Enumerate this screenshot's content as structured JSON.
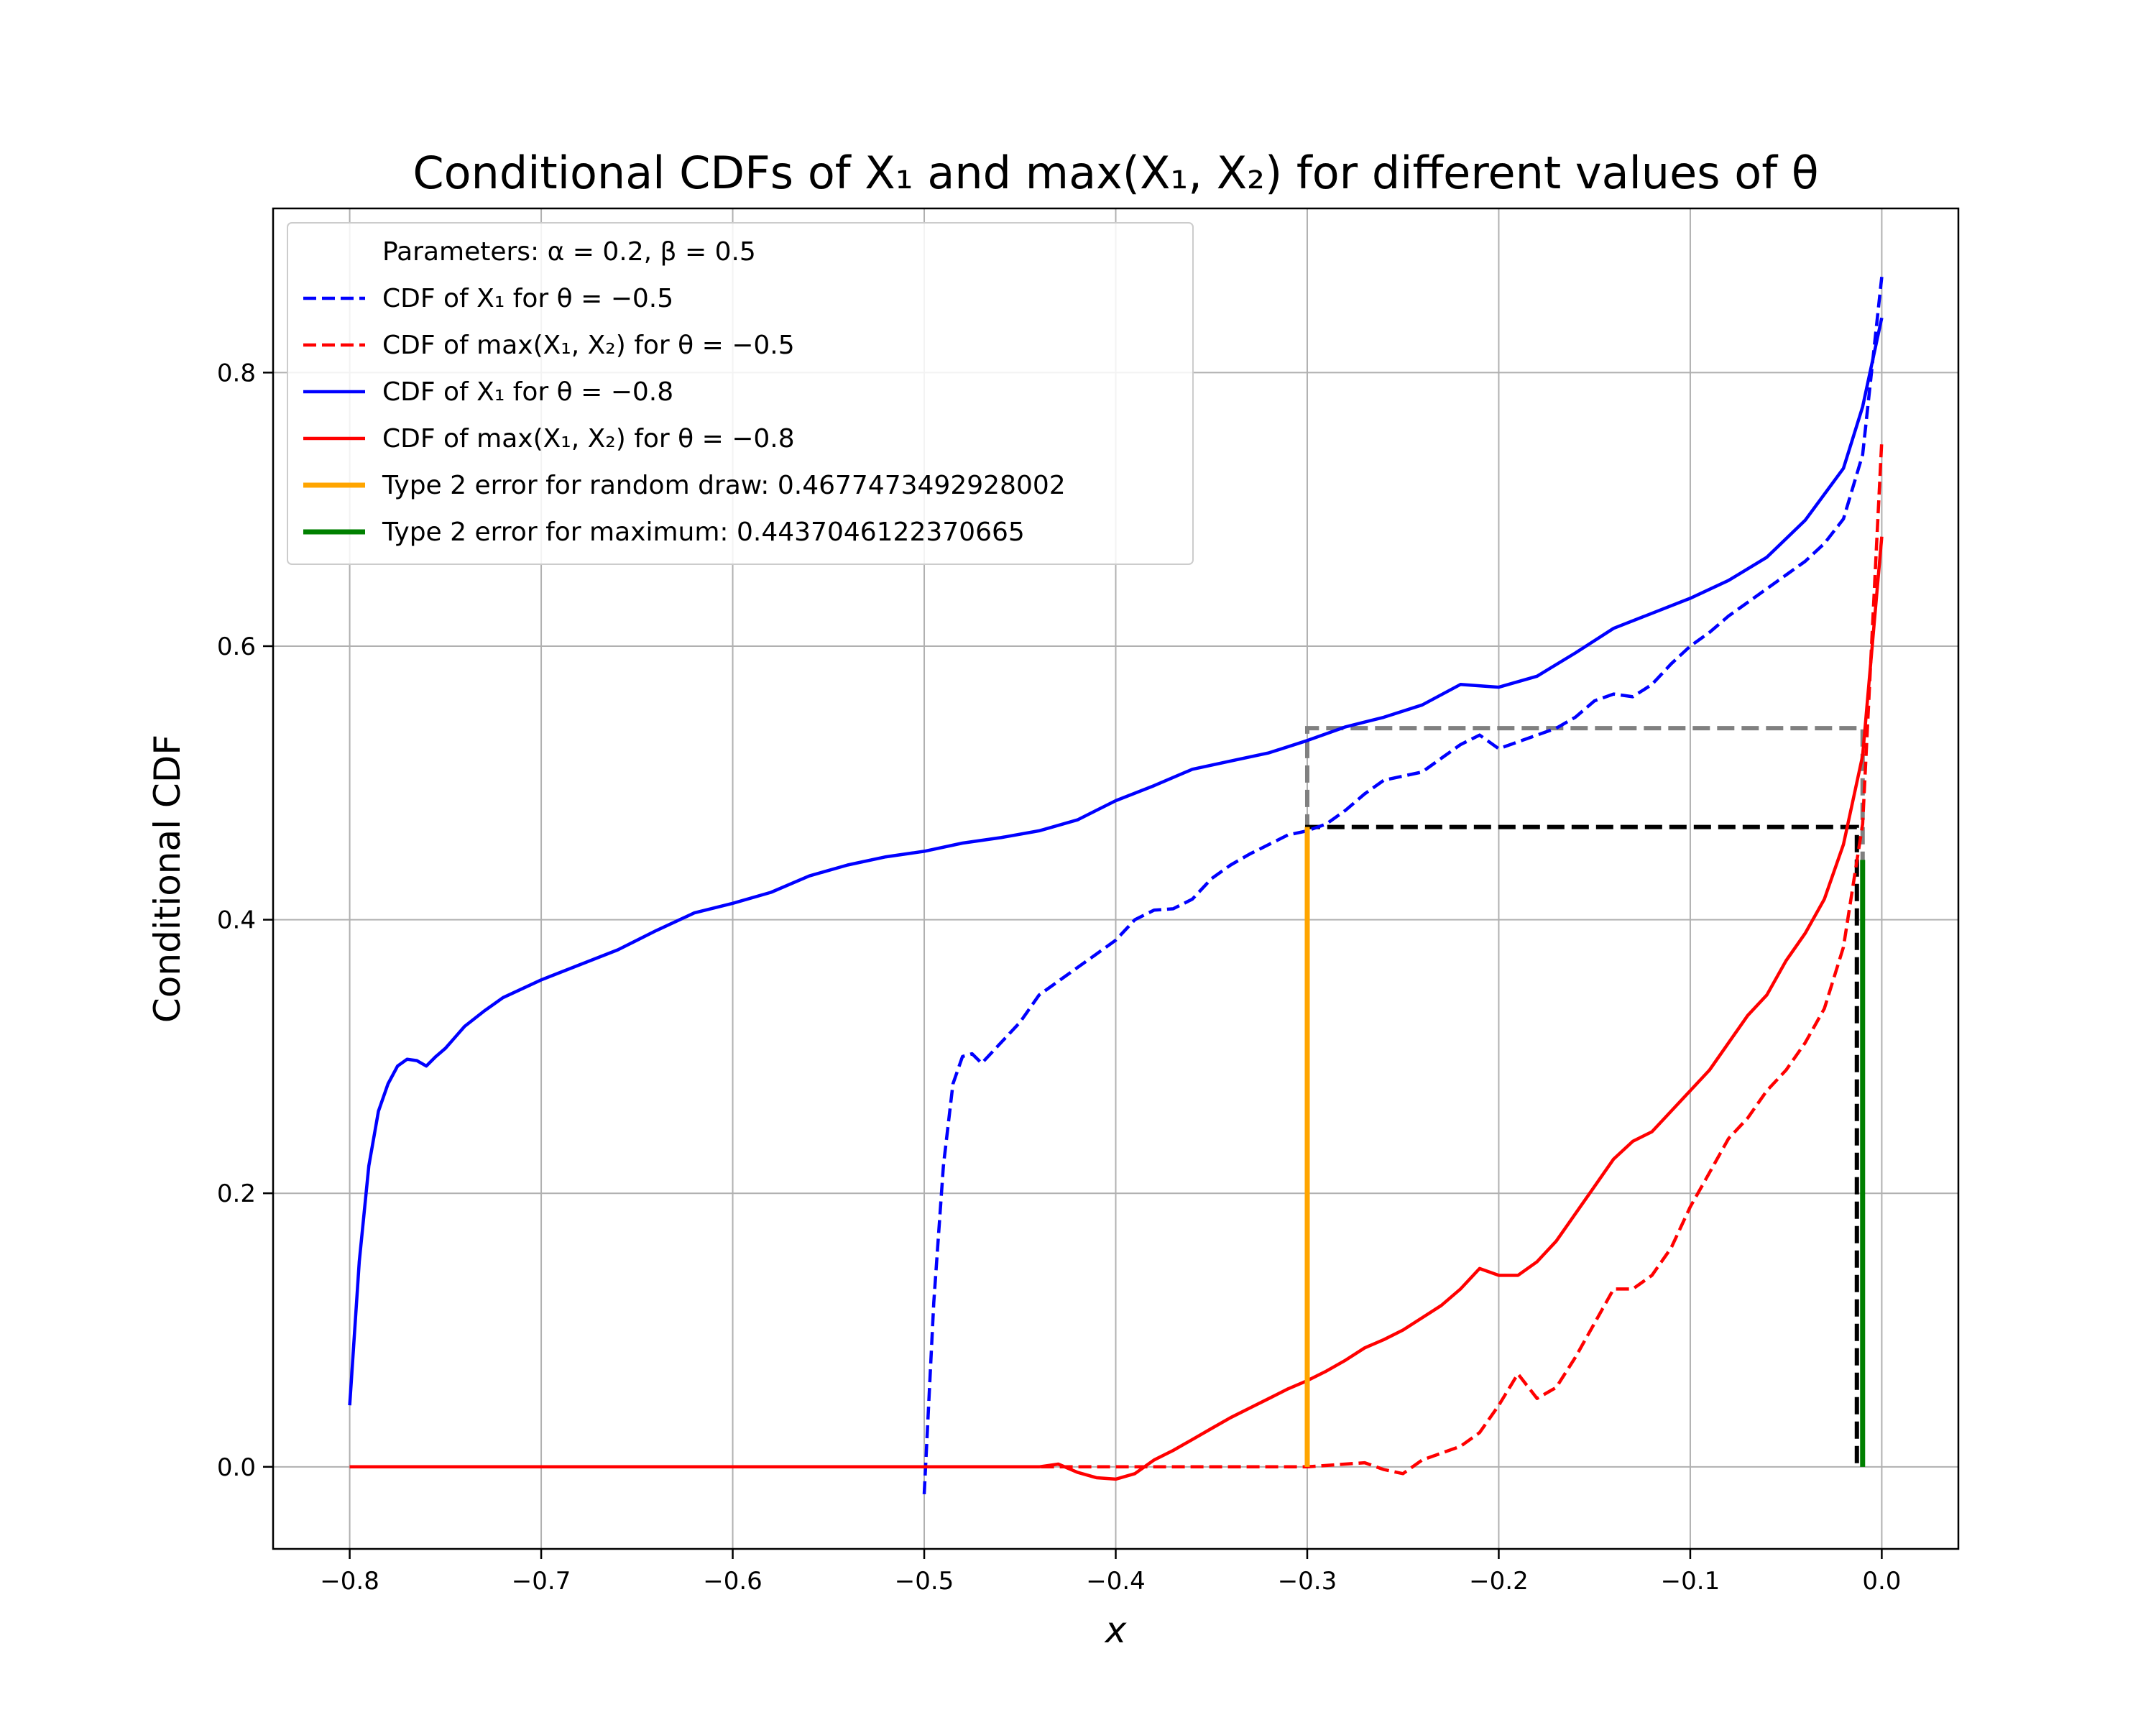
{
  "chart_data": {
    "type": "line",
    "title": "Conditional CDFs of X₁ and max(X₁, X₂) for different values of θ",
    "xlabel": "x",
    "ylabel": "Conditional CDF",
    "xlim": [
      -0.84,
      0.04
    ],
    "ylim": [
      -0.06,
      0.92
    ],
    "grid": true,
    "legend_position": "top-left",
    "xticks": [
      -0.8,
      -0.7,
      -0.6,
      -0.5,
      -0.4,
      -0.3,
      -0.2,
      -0.1,
      0.0
    ],
    "xtick_labels": [
      "−0.8",
      "−0.7",
      "−0.6",
      "−0.5",
      "−0.4",
      "−0.3",
      "−0.2",
      "−0.1",
      "0.0"
    ],
    "yticks": [
      0.0,
      0.2,
      0.4,
      0.6,
      0.8
    ],
    "ytick_labels": [
      "0.0",
      "0.2",
      "0.4",
      "0.6",
      "0.8"
    ],
    "legend_header": "Parameters: α = 0.2, β = 0.5",
    "series": [
      {
        "name": "CDF of X₁ for θ = −0.5",
        "color": "#0000ff",
        "dash": true,
        "x": [
          -0.5,
          -0.495,
          -0.49,
          -0.485,
          -0.48,
          -0.475,
          -0.47,
          -0.46,
          -0.45,
          -0.44,
          -0.43,
          -0.42,
          -0.41,
          -0.4,
          -0.39,
          -0.38,
          -0.37,
          -0.36,
          -0.35,
          -0.34,
          -0.33,
          -0.32,
          -0.31,
          -0.3,
          -0.29,
          -0.28,
          -0.27,
          -0.26,
          -0.25,
          -0.24,
          -0.23,
          -0.22,
          -0.21,
          -0.2,
          -0.19,
          -0.18,
          -0.17,
          -0.16,
          -0.15,
          -0.14,
          -0.13,
          -0.12,
          -0.11,
          -0.1,
          -0.09,
          -0.08,
          -0.07,
          -0.06,
          -0.05,
          -0.04,
          -0.03,
          -0.02,
          -0.01,
          0.0
        ],
        "y": [
          -0.02,
          0.12,
          0.22,
          0.28,
          0.3,
          0.302,
          0.295,
          0.31,
          0.325,
          0.345,
          0.355,
          0.365,
          0.375,
          0.385,
          0.4,
          0.407,
          0.408,
          0.415,
          0.43,
          0.44,
          0.448,
          0.455,
          0.462,
          0.465,
          0.47,
          0.48,
          0.492,
          0.502,
          0.505,
          0.508,
          0.518,
          0.528,
          0.535,
          0.525,
          0.53,
          0.535,
          0.54,
          0.548,
          0.56,
          0.565,
          0.563,
          0.572,
          0.587,
          0.6,
          0.61,
          0.622,
          0.632,
          0.642,
          0.652,
          0.662,
          0.675,
          0.693,
          0.74,
          0.87
        ]
      },
      {
        "name": "CDF of max(X₁, X₂) for θ = −0.5",
        "color": "#ff0000",
        "dash": true,
        "x": [
          -0.8,
          -0.7,
          -0.6,
          -0.5,
          -0.44,
          -0.4,
          -0.36,
          -0.3,
          -0.27,
          -0.26,
          -0.25,
          -0.24,
          -0.23,
          -0.22,
          -0.21,
          -0.2,
          -0.19,
          -0.18,
          -0.17,
          -0.16,
          -0.15,
          -0.14,
          -0.13,
          -0.12,
          -0.11,
          -0.1,
          -0.09,
          -0.08,
          -0.07,
          -0.06,
          -0.05,
          -0.04,
          -0.03,
          -0.02,
          -0.01,
          0.0
        ],
        "y": [
          0.0,
          0.0,
          0.0,
          0.0,
          0.0,
          0.0,
          0.0,
          0.0,
          0.003,
          -0.002,
          -0.005,
          0.005,
          0.01,
          0.015,
          0.025,
          0.045,
          0.068,
          0.05,
          0.058,
          0.08,
          0.105,
          0.13,
          0.13,
          0.14,
          0.16,
          0.19,
          0.215,
          0.24,
          0.255,
          0.275,
          0.29,
          0.31,
          0.335,
          0.38,
          0.47,
          0.75
        ]
      },
      {
        "name": "CDF of X₁ for θ = −0.8",
        "color": "#0000ff",
        "dash": false,
        "x": [
          -0.8,
          -0.795,
          -0.79,
          -0.785,
          -0.78,
          -0.775,
          -0.77,
          -0.765,
          -0.76,
          -0.755,
          -0.75,
          -0.74,
          -0.73,
          -0.72,
          -0.7,
          -0.68,
          -0.66,
          -0.64,
          -0.62,
          -0.6,
          -0.58,
          -0.56,
          -0.54,
          -0.52,
          -0.5,
          -0.48,
          -0.46,
          -0.44,
          -0.42,
          -0.4,
          -0.38,
          -0.36,
          -0.34,
          -0.32,
          -0.3,
          -0.28,
          -0.26,
          -0.24,
          -0.22,
          -0.2,
          -0.18,
          -0.16,
          -0.14,
          -0.12,
          -0.1,
          -0.08,
          -0.06,
          -0.04,
          -0.02,
          -0.01,
          0.0
        ],
        "y": [
          0.045,
          0.15,
          0.22,
          0.26,
          0.28,
          0.293,
          0.298,
          0.297,
          0.293,
          0.3,
          0.306,
          0.322,
          0.333,
          0.343,
          0.356,
          0.367,
          0.378,
          0.392,
          0.405,
          0.412,
          0.42,
          0.432,
          0.44,
          0.446,
          0.45,
          0.456,
          0.46,
          0.465,
          0.473,
          0.487,
          0.498,
          0.51,
          0.516,
          0.522,
          0.531,
          0.541,
          0.548,
          0.557,
          0.572,
          0.57,
          0.578,
          0.595,
          0.613,
          0.624,
          0.635,
          0.648,
          0.665,
          0.692,
          0.73,
          0.775,
          0.84
        ]
      },
      {
        "name": "CDF of max(X₁, X₂) for θ = −0.8",
        "color": "#ff0000",
        "dash": false,
        "x": [
          -0.8,
          -0.7,
          -0.6,
          -0.5,
          -0.44,
          -0.43,
          -0.42,
          -0.41,
          -0.4,
          -0.39,
          -0.38,
          -0.37,
          -0.36,
          -0.35,
          -0.34,
          -0.33,
          -0.32,
          -0.31,
          -0.3,
          -0.29,
          -0.28,
          -0.27,
          -0.26,
          -0.25,
          -0.24,
          -0.23,
          -0.22,
          -0.21,
          -0.2,
          -0.19,
          -0.18,
          -0.17,
          -0.16,
          -0.15,
          -0.14,
          -0.13,
          -0.12,
          -0.11,
          -0.1,
          -0.09,
          -0.08,
          -0.07,
          -0.06,
          -0.05,
          -0.04,
          -0.03,
          -0.02,
          -0.01,
          0.0
        ],
        "y": [
          0.0,
          0.0,
          0.0,
          0.0,
          0.0,
          0.002,
          -0.004,
          -0.008,
          -0.009,
          -0.005,
          0.005,
          0.012,
          0.02,
          0.028,
          0.036,
          0.043,
          0.05,
          0.057,
          0.063,
          0.07,
          0.078,
          0.087,
          0.093,
          0.1,
          0.109,
          0.118,
          0.13,
          0.145,
          0.14,
          0.14,
          0.15,
          0.165,
          0.185,
          0.205,
          0.225,
          0.238,
          0.245,
          0.26,
          0.275,
          0.29,
          0.31,
          0.33,
          0.345,
          0.37,
          0.39,
          0.415,
          0.455,
          0.52,
          0.68
        ]
      }
    ],
    "markers": [
      {
        "name": "Type 2 error for random draw: 0.4677473492928002",
        "color": "#ffa500",
        "x": -0.3,
        "y": 0.4677473492928002
      },
      {
        "name": "Type 2 error for maximum: 0.4437046122370665",
        "color": "#008000",
        "x": -0.01,
        "y": 0.4437046122370665
      }
    ],
    "reference_lines": [
      {
        "color": "#808080",
        "x_from": -0.3,
        "x_to": -0.01,
        "y_from": 0.0,
        "y_to": 0.54
      },
      {
        "color": "#000000",
        "x_from": -0.3,
        "x_to": -0.013,
        "y_from": 0.0,
        "y_to": 0.4677473492928002
      }
    ]
  }
}
